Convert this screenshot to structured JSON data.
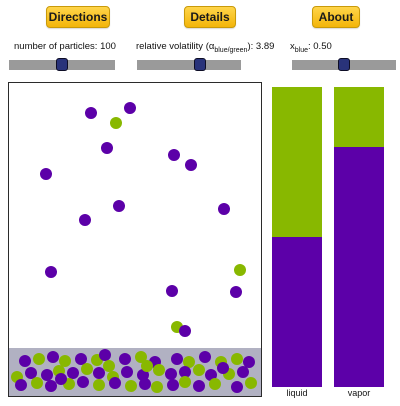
{
  "buttons": {
    "directions": "Directions",
    "details": "Details",
    "about": "About"
  },
  "controls": {
    "particles": {
      "label": "number of particles: ",
      "value": 100,
      "fraction": 0.5
    },
    "volatility": {
      "label_prefix": "relative volatility (α",
      "label_sub": "blue/green",
      "label_suffix": "): ",
      "value": 3.89,
      "fraction": 0.62
    },
    "xblue": {
      "label_prefix": "x",
      "label_sub": "blue",
      "label_suffix": ": ",
      "value": 0.5,
      "fraction": 0.5
    }
  },
  "colors": {
    "blue": "#5c00a8",
    "green": "#88b800",
    "liquid_band": "#b1b1c2"
  },
  "composition": {
    "liquid": {
      "label": "liquid",
      "blue_fraction": 0.5
    },
    "vapor": {
      "label": "vapor",
      "blue_fraction": 0.8
    }
  },
  "vapor_particles": [
    [
      "blue",
      82,
      30
    ],
    [
      "green",
      107,
      40
    ],
    [
      "blue",
      121,
      25
    ],
    [
      "blue",
      98,
      65
    ],
    [
      "blue",
      165,
      72
    ],
    [
      "blue",
      182,
      82
    ],
    [
      "blue",
      37,
      91
    ],
    [
      "blue",
      110,
      123
    ],
    [
      "blue",
      215,
      126
    ],
    [
      "blue",
      76,
      137
    ],
    [
      "blue",
      42,
      189
    ],
    [
      "green",
      231,
      187
    ],
    [
      "blue",
      227,
      209
    ],
    [
      "blue",
      163,
      208
    ],
    [
      "green",
      168,
      244
    ],
    [
      "blue",
      176,
      248
    ]
  ],
  "liquid_particles": [
    [
      "blue",
      16,
      278
    ],
    [
      "green",
      30,
      276
    ],
    [
      "blue",
      44,
      274
    ],
    [
      "green",
      56,
      278
    ],
    [
      "blue",
      72,
      276
    ],
    [
      "green",
      88,
      277
    ],
    [
      "blue",
      96,
      272
    ],
    [
      "blue",
      116,
      276
    ],
    [
      "green",
      132,
      274
    ],
    [
      "blue",
      146,
      279
    ],
    [
      "blue",
      168,
      276
    ],
    [
      "green",
      180,
      279
    ],
    [
      "blue",
      196,
      274
    ],
    [
      "green",
      212,
      279
    ],
    [
      "green",
      228,
      276
    ],
    [
      "blue",
      240,
      279
    ],
    [
      "green",
      8,
      294
    ],
    [
      "blue",
      22,
      290
    ],
    [
      "blue",
      38,
      292
    ],
    [
      "green",
      50,
      288
    ],
    [
      "blue",
      64,
      290
    ],
    [
      "green",
      78,
      286
    ],
    [
      "blue",
      90,
      290
    ],
    [
      "green",
      104,
      294
    ],
    [
      "blue",
      118,
      289
    ],
    [
      "blue",
      134,
      292
    ],
    [
      "green",
      150,
      287
    ],
    [
      "blue",
      162,
      291
    ],
    [
      "blue",
      176,
      289
    ],
    [
      "green",
      190,
      287
    ],
    [
      "blue",
      202,
      292
    ],
    [
      "green",
      220,
      291
    ],
    [
      "blue",
      234,
      289
    ],
    [
      "blue",
      12,
      302
    ],
    [
      "green",
      28,
      300
    ],
    [
      "blue",
      42,
      303
    ],
    [
      "green",
      60,
      301
    ],
    [
      "blue",
      74,
      299
    ],
    [
      "green",
      90,
      302
    ],
    [
      "blue",
      106,
      300
    ],
    [
      "green",
      122,
      303
    ],
    [
      "blue",
      136,
      301
    ],
    [
      "green",
      148,
      304
    ],
    [
      "blue",
      164,
      302
    ],
    [
      "green",
      176,
      299
    ],
    [
      "blue",
      190,
      303
    ],
    [
      "green",
      206,
      301
    ],
    [
      "blue",
      228,
      304
    ],
    [
      "green",
      242,
      300
    ],
    [
      "blue",
      52,
      296
    ],
    [
      "green",
      138,
      283
    ],
    [
      "blue",
      214,
      285
    ],
    [
      "green",
      100,
      283
    ]
  ]
}
